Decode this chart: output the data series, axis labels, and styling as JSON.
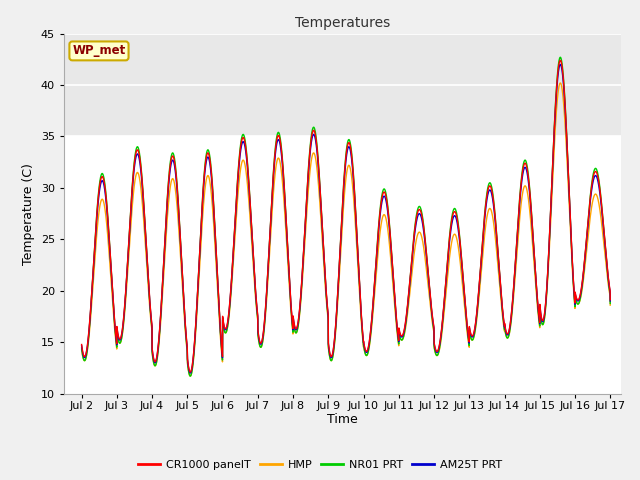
{
  "title": "Temperatures",
  "xlabel": "Time",
  "ylabel": "Temperature (C)",
  "station_label": "WP_met",
  "ylim": [
    10,
    45
  ],
  "xlim_days": [
    1.5,
    17.3
  ],
  "yticks": [
    10,
    15,
    20,
    25,
    30,
    35,
    40,
    45
  ],
  "xtick_labels": [
    "Jul 2",
    "Jul 3",
    "Jul 4",
    "Jul 5",
    "Jul 6",
    "Jul 7",
    "Jul 8",
    "Jul 9",
    "Jul 10",
    "Jul 11",
    "Jul 12",
    "Jul 13",
    "Jul 14",
    "Jul 15",
    "Jul 16",
    "Jul 17"
  ],
  "xtick_positions": [
    2,
    3,
    4,
    5,
    6,
    7,
    8,
    9,
    10,
    11,
    12,
    13,
    14,
    15,
    16,
    17
  ],
  "series_colors": [
    "#ff0000",
    "#ffa500",
    "#00cc00",
    "#0000cd"
  ],
  "series_labels": [
    "CR1000 panelT",
    "HMP",
    "NR01 PRT",
    "AM25T PRT"
  ],
  "shaded_region_color": "#e8e8e8",
  "shaded_region": [
    35,
    45
  ],
  "plot_bg_color": "#ffffff",
  "fig_bg_color": "#f0f0f0",
  "grid_color": "#ffffff",
  "line_width": 1.0,
  "day_peaks": [
    30.7,
    33.3,
    32.7,
    33.0,
    34.5,
    34.7,
    35.2,
    34.0,
    29.2,
    27.5,
    27.3,
    29.8,
    32.0,
    42.0,
    31.2,
    19.0
  ],
  "day_troughs": [
    13.5,
    15.2,
    13.0,
    12.0,
    16.2,
    14.8,
    16.2,
    13.5,
    14.0,
    15.5,
    14.0,
    15.5,
    15.7,
    17.0,
    19.0,
    19.0
  ]
}
